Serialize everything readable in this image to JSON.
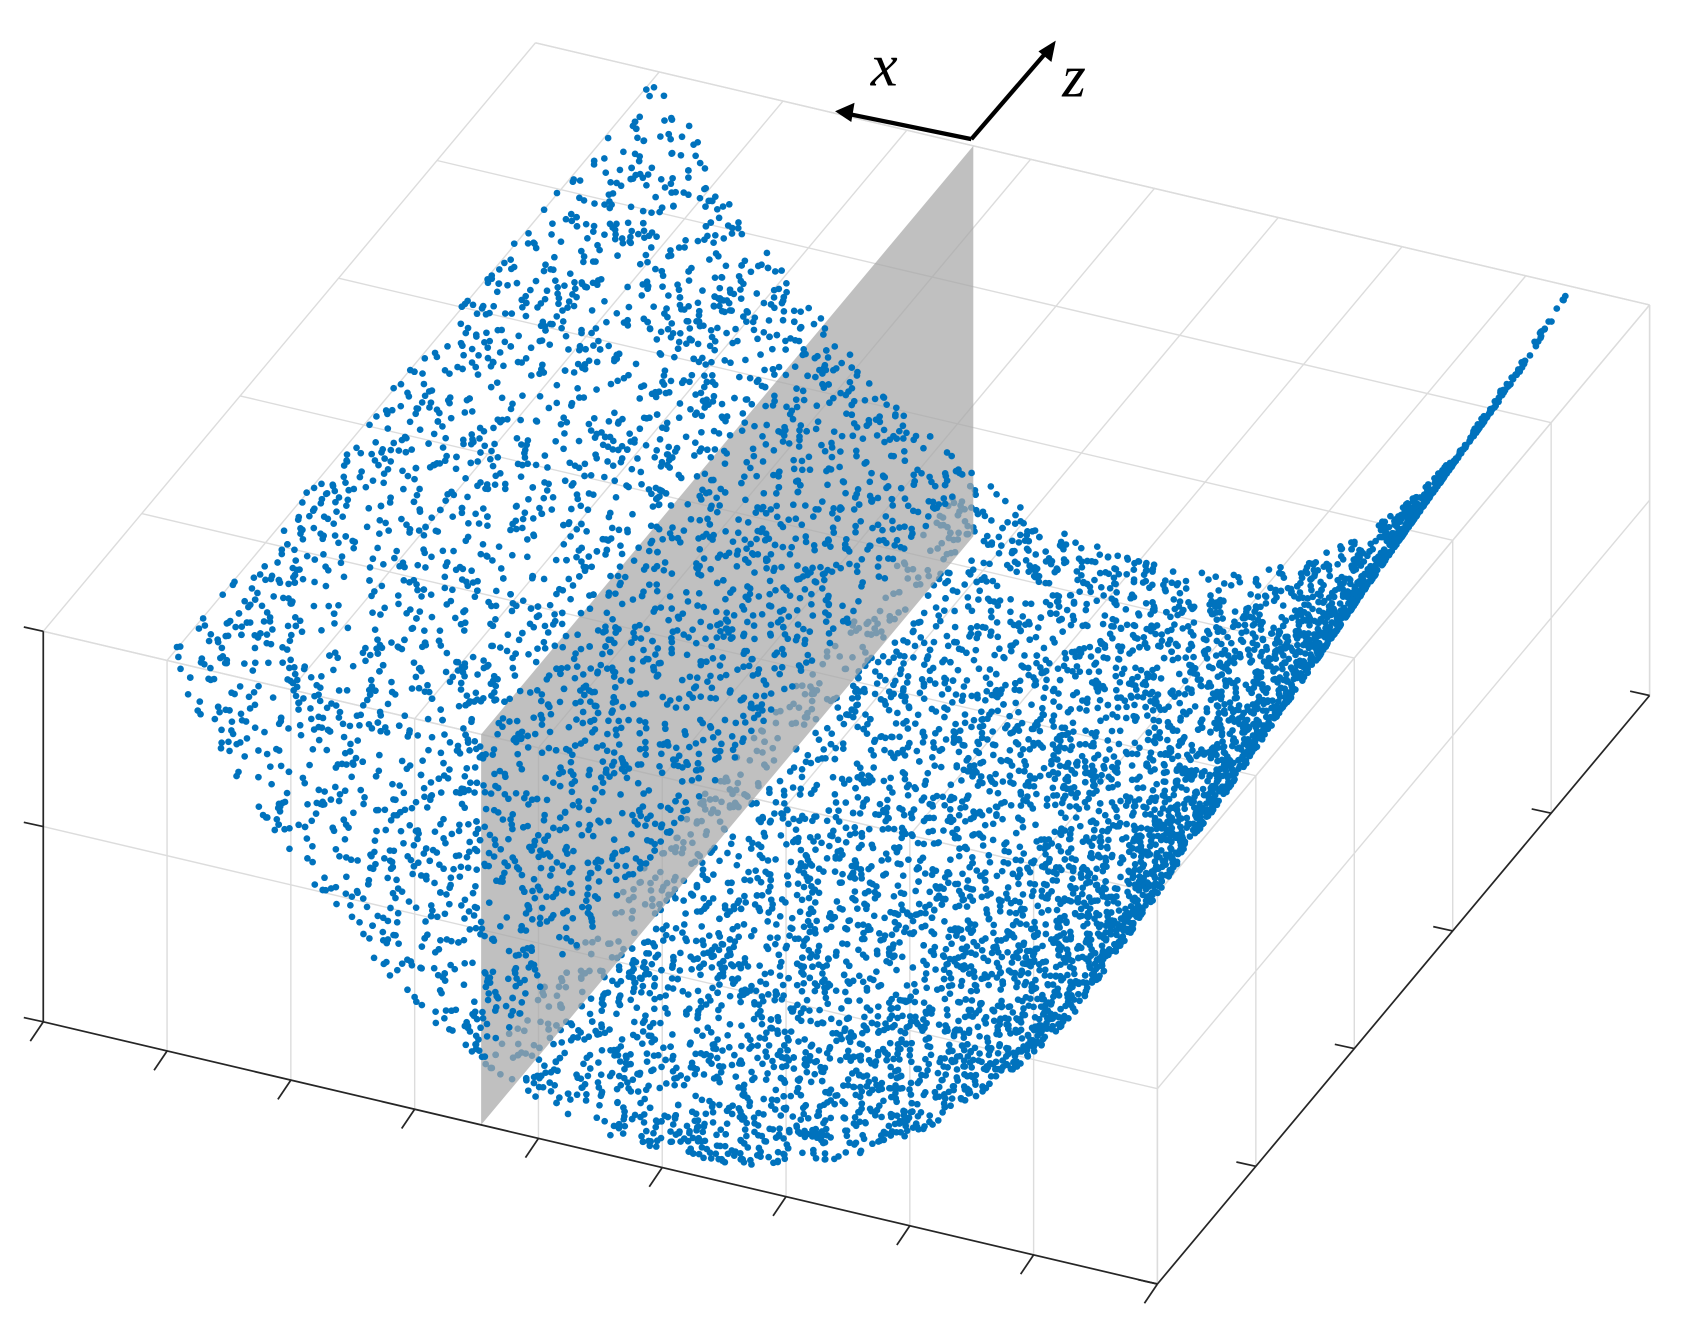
{
  "axis_labels": {
    "x": "x",
    "z": "z"
  }
}
